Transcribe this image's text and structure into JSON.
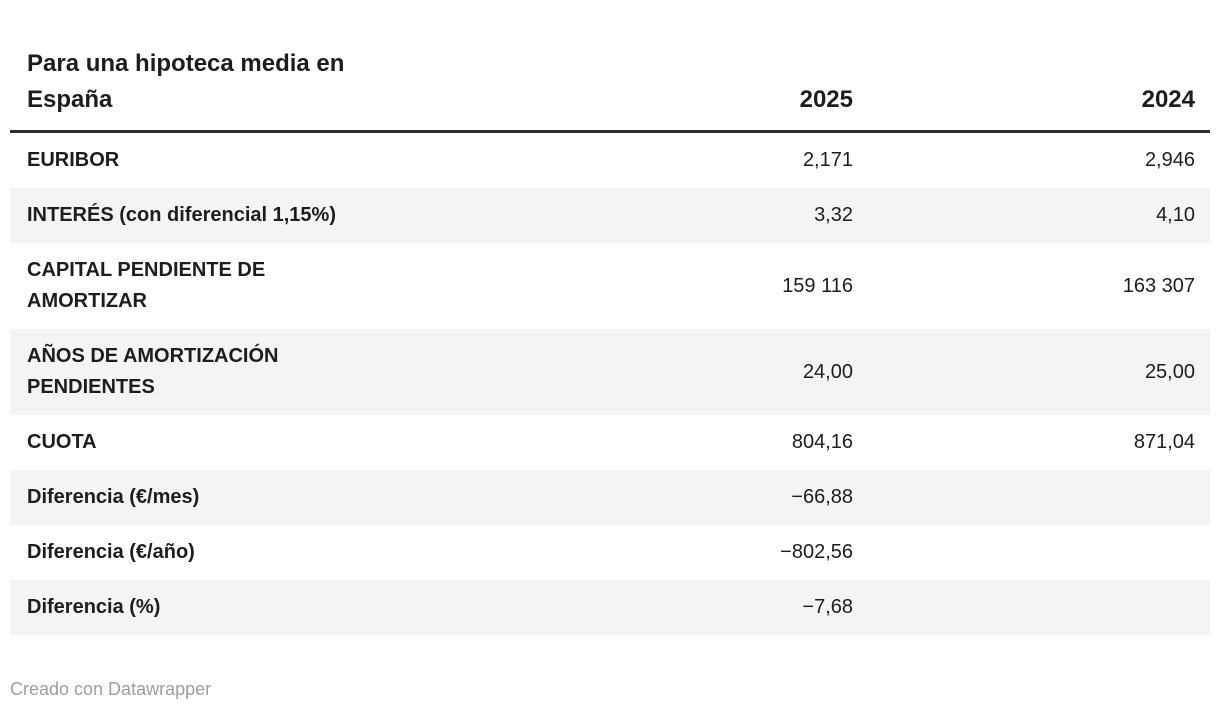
{
  "header": {
    "title": "Para una hipoteca media en\nEspaña",
    "columns": [
      "2025",
      "2024"
    ]
  },
  "table": {
    "rows": [
      {
        "label": "EURIBOR",
        "v2025": "2,171",
        "v2024": "2,946"
      },
      {
        "label": "INTERÉS (con diferencial 1,15%)",
        "v2025": "3,32",
        "v2024": "4,10"
      },
      {
        "label": "CAPITAL PENDIENTE DE\nAMORTIZAR",
        "v2025": "159 116",
        "v2024": "163 307"
      },
      {
        "label": "AÑOS DE AMORTIZACIÓN\nPENDIENTES",
        "v2025": "24,00",
        "v2024": "25,00"
      },
      {
        "label": "CUOTA",
        "v2025": "804,16",
        "v2024": "871,04"
      },
      {
        "label": "Diferencia (€/mes)",
        "v2025": "−66,88",
        "v2024": ""
      },
      {
        "label": "Diferencia (€/año)",
        "v2025": "−802,56",
        "v2024": ""
      },
      {
        "label": "Diferencia (%)",
        "v2025": "−7,68",
        "v2024": ""
      }
    ]
  },
  "footer": {
    "credit": "Creado con Datawrapper"
  },
  "colors": {
    "text": "#1d1d1d",
    "stripe": "#f4f4f4",
    "header_rule": "#2e2e2e",
    "credit": "#9e9e9e",
    "background": "#ffffff"
  },
  "chart_data": {
    "type": "table",
    "title": "Para una hipoteca media en España",
    "columns": [
      "",
      "2025",
      "2024"
    ],
    "rows": [
      [
        "EURIBOR",
        "2,171",
        "2,946"
      ],
      [
        "INTERÉS (con diferencial 1,15%)",
        "3,32",
        "4,10"
      ],
      [
        "CAPITAL PENDIENTE DE AMORTIZAR",
        "159 116",
        "163 307"
      ],
      [
        "AÑOS DE AMORTIZACIÓN PENDIENTES",
        "24,00",
        "25,00"
      ],
      [
        "CUOTA",
        "804,16",
        "871,04"
      ],
      [
        "Diferencia (€/mes)",
        "−66,88",
        ""
      ],
      [
        "Diferencia (€/año)",
        "−802,56",
        ""
      ],
      [
        "Diferencia (%)",
        "−7,68",
        ""
      ]
    ],
    "layout_hints": {
      "zebra_striping": true,
      "value_alignment": "right",
      "label_column_bold": true,
      "footer_credit": "Creado con Datawrapper"
    }
  }
}
